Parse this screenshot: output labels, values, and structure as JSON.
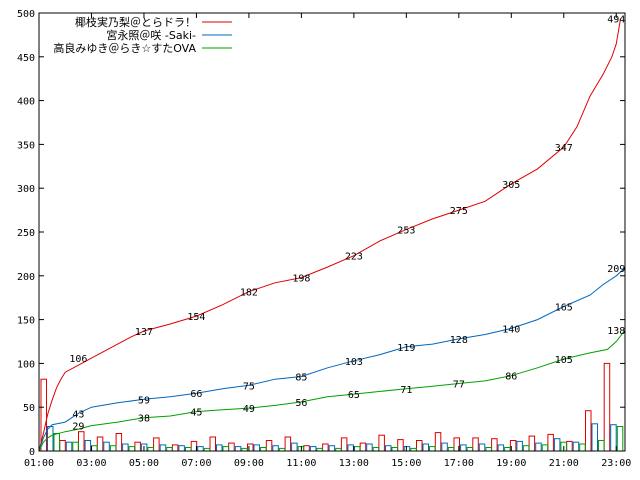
{
  "chart_data": {
    "type": "line",
    "x_unit": "time",
    "xlim": [
      "01:00",
      "23:20"
    ],
    "ylim": [
      0,
      500
    ],
    "x_tick_labels": [
      "01:00",
      "03:00",
      "05:00",
      "07:00",
      "09:00",
      "11:00",
      "13:00",
      "15:00",
      "17:00",
      "19:00",
      "21:00",
      "23:00"
    ],
    "y_tick_labels": [
      "0",
      "50",
      "100",
      "150",
      "200",
      "250",
      "300",
      "350",
      "400",
      "450",
      "500"
    ],
    "grid": false,
    "legend_position": "top-left",
    "series": [
      {
        "name": "椰枝実乃梨＠とらドラ！",
        "color": "#e00000",
        "points": [
          [
            "01:00",
            0
          ],
          [
            "01:10",
            20
          ],
          [
            "01:20",
            42
          ],
          [
            "01:30",
            58
          ],
          [
            "01:40",
            72
          ],
          [
            "01:50",
            82
          ],
          [
            "02:00",
            90
          ],
          [
            "02:30",
            98
          ],
          [
            "03:00",
            106
          ],
          [
            "04:00",
            122
          ],
          [
            "04:30",
            130
          ],
          [
            "05:00",
            137
          ],
          [
            "06:00",
            145
          ],
          [
            "07:00",
            154
          ],
          [
            "08:00",
            167
          ],
          [
            "09:00",
            182
          ],
          [
            "10:00",
            192
          ],
          [
            "11:00",
            198
          ],
          [
            "12:00",
            210
          ],
          [
            "13:00",
            223
          ],
          [
            "14:00",
            240
          ],
          [
            "15:00",
            253
          ],
          [
            "16:00",
            265
          ],
          [
            "17:00",
            275
          ],
          [
            "18:00",
            285
          ],
          [
            "19:00",
            305
          ],
          [
            "20:00",
            322
          ],
          [
            "21:00",
            347
          ],
          [
            "21:30",
            370
          ],
          [
            "22:00",
            405
          ],
          [
            "22:30",
            430
          ],
          [
            "22:50",
            450
          ],
          [
            "23:00",
            465
          ],
          [
            "23:10",
            494
          ]
        ],
        "labels": [
          [
            "02:30",
            106,
            "106"
          ],
          [
            "05:00",
            137,
            "137"
          ],
          [
            "07:00",
            154,
            "154"
          ],
          [
            "09:00",
            182,
            "182"
          ],
          [
            "11:00",
            198,
            "198"
          ],
          [
            "13:00",
            223,
            "223"
          ],
          [
            "15:00",
            253,
            "253"
          ],
          [
            "17:00",
            275,
            "275"
          ],
          [
            "19:00",
            305,
            "305"
          ],
          [
            "21:00",
            347,
            "347"
          ],
          [
            "23:00",
            494,
            "494"
          ]
        ]
      },
      {
        "name": "宮永照＠咲 -Saki-",
        "color": "#0068c0",
        "points": [
          [
            "01:00",
            0
          ],
          [
            "01:10",
            15
          ],
          [
            "01:20",
            25
          ],
          [
            "01:30",
            30
          ],
          [
            "02:00",
            33
          ],
          [
            "02:30",
            43
          ],
          [
            "03:00",
            50
          ],
          [
            "04:00",
            55
          ],
          [
            "05:00",
            59
          ],
          [
            "06:00",
            62
          ],
          [
            "07:00",
            66
          ],
          [
            "08:00",
            71
          ],
          [
            "09:00",
            75
          ],
          [
            "10:00",
            82
          ],
          [
            "11:00",
            85
          ],
          [
            "12:00",
            95
          ],
          [
            "13:00",
            103
          ],
          [
            "14:00",
            110
          ],
          [
            "15:00",
            119
          ],
          [
            "16:00",
            122
          ],
          [
            "17:00",
            128
          ],
          [
            "18:00",
            133
          ],
          [
            "19:00",
            140
          ],
          [
            "20:00",
            150
          ],
          [
            "21:00",
            165
          ],
          [
            "22:00",
            178
          ],
          [
            "22:30",
            190
          ],
          [
            "23:00",
            200
          ],
          [
            "23:20",
            209
          ]
        ],
        "labels": [
          [
            "02:30",
            43,
            "43"
          ],
          [
            "05:00",
            59,
            "59"
          ],
          [
            "07:00",
            66,
            "66"
          ],
          [
            "09:00",
            75,
            "75"
          ],
          [
            "11:00",
            85,
            "85"
          ],
          [
            "13:00",
            103,
            "103"
          ],
          [
            "15:00",
            119,
            "119"
          ],
          [
            "17:00",
            128,
            "128"
          ],
          [
            "19:00",
            140,
            "140"
          ],
          [
            "21:00",
            165,
            "165"
          ],
          [
            "23:00",
            209,
            "209"
          ]
        ]
      },
      {
        "name": "高良みゆき＠らき☆すたOVA",
        "color": "#00a000",
        "points": [
          [
            "01:00",
            0
          ],
          [
            "01:10",
            10
          ],
          [
            "01:20",
            15
          ],
          [
            "01:30",
            18
          ],
          [
            "02:00",
            22
          ],
          [
            "02:30",
            25
          ],
          [
            "03:00",
            29
          ],
          [
            "04:00",
            33
          ],
          [
            "05:00",
            38
          ],
          [
            "06:00",
            40
          ],
          [
            "07:00",
            45
          ],
          [
            "08:00",
            47
          ],
          [
            "09:00",
            49
          ],
          [
            "10:00",
            52
          ],
          [
            "11:00",
            56
          ],
          [
            "12:00",
            62
          ],
          [
            "13:00",
            65
          ],
          [
            "14:00",
            68
          ],
          [
            "15:00",
            71
          ],
          [
            "16:00",
            74
          ],
          [
            "17:00",
            77
          ],
          [
            "18:00",
            80
          ],
          [
            "19:00",
            86
          ],
          [
            "20:00",
            95
          ],
          [
            "21:00",
            105
          ],
          [
            "22:00",
            112
          ],
          [
            "22:40",
            116
          ],
          [
            "23:00",
            125
          ],
          [
            "23:20",
            138
          ]
        ],
        "labels": [
          [
            "02:30",
            29,
            "29"
          ],
          [
            "05:00",
            38,
            "38"
          ],
          [
            "07:00",
            45,
            "45"
          ],
          [
            "09:00",
            49,
            "49"
          ],
          [
            "11:00",
            56,
            "56"
          ],
          [
            "13:00",
            65,
            "65"
          ],
          [
            "15:00",
            71,
            "71"
          ],
          [
            "17:00",
            77,
            "77"
          ],
          [
            "19:00",
            86,
            "86"
          ],
          [
            "21:00",
            105,
            "105"
          ],
          [
            "23:00",
            138,
            "138"
          ]
        ]
      }
    ],
    "hist_bars": [
      {
        "series": 0,
        "values": [
          82,
          12,
          22,
          16,
          20,
          10,
          15,
          7,
          11,
          16,
          9,
          8,
          12,
          16,
          6,
          8,
          15,
          9,
          18,
          13,
          12,
          21,
          15,
          15,
          14,
          12,
          17,
          19,
          11,
          46,
          100
        ]
      },
      {
        "series": 1,
        "values": [
          28,
          10,
          12,
          10,
          8,
          8,
          7,
          6,
          5,
          7,
          5,
          7,
          6,
          9,
          5,
          6,
          7,
          8,
          6,
          5,
          8,
          9,
          7,
          8,
          7,
          11,
          9,
          14,
          10,
          31,
          30
        ]
      },
      {
        "series": 2,
        "values": [
          20,
          10,
          6,
          6,
          5,
          4,
          4,
          4,
          3,
          5,
          3,
          4,
          3,
          5,
          3,
          3,
          5,
          4,
          4,
          3,
          5,
          4,
          4,
          4,
          4,
          6,
          7,
          10,
          8,
          12,
          28
        ]
      }
    ]
  }
}
